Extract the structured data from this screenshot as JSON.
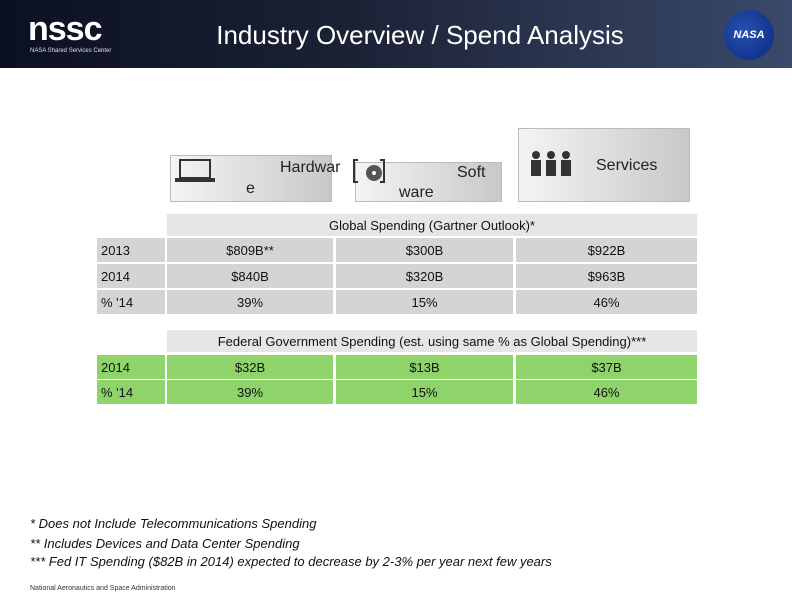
{
  "header": {
    "logo": "nssc",
    "logo_sub": "NASA Shared Services Center",
    "title": "Industry Overview / Spend Analysis",
    "emblem": "NASA"
  },
  "categories": {
    "hardware": [
      "Hardwar",
      "e"
    ],
    "software": [
      "Soft",
      "ware"
    ],
    "services": "Services"
  },
  "global_table": {
    "title": "Global Spending (Gartner Outlook)*",
    "rows": [
      [
        "2013",
        "$809B**",
        "$300B",
        "$922B"
      ],
      [
        "2014",
        "$840B",
        "$320B",
        "$963B"
      ],
      [
        "% '14",
        "39%",
        "15%",
        "46%"
      ]
    ]
  },
  "federal_table": {
    "title": "Federal Government Spending (est. using same % as Global Spending)***",
    "rows": [
      [
        "2014",
        "$32B",
        "$13B",
        "$37B"
      ],
      [
        "% '14",
        "39%",
        "15%",
        "46%"
      ]
    ]
  },
  "footnotes": [
    "* Does not Include Telecommunications Spending",
    "** Includes Devices and Data Center Spending",
    "*** Fed IT Spending ($82B in 2014) expected to decrease by 2-3% per year next few years"
  ],
  "footer": "National Aeronautics and Space Administration"
}
